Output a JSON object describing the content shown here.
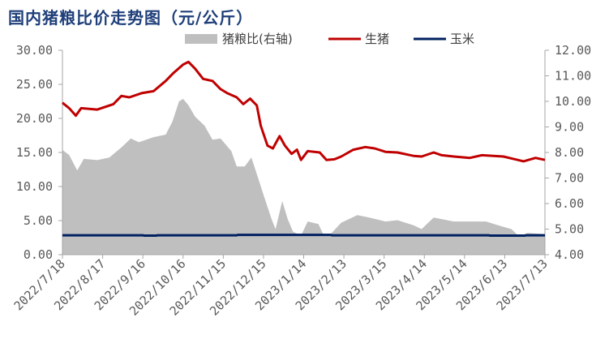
{
  "title": "国内猪粮比价走势图（元/公斤）",
  "chart_data": {
    "type": "line",
    "title": "国内猪粮比价走势图（元/公斤）",
    "start_date": "2022/7/18",
    "x_unit": "days since 2022/7/18",
    "x_range": [
      0,
      360
    ],
    "x_tick_labels": [
      "2022/7/18",
      "2022/8/17",
      "2022/9/16",
      "2022/10/16",
      "2022/11/15",
      "2022/12/15",
      "2023/1/14",
      "2023/2/13",
      "2023/3/15",
      "2023/4/14",
      "2023/5/14",
      "2023/6/13",
      "2023/7/13"
    ],
    "y_left": {
      "range": [
        0,
        30
      ],
      "ticks": [
        "0.00",
        "5.00",
        "10.00",
        "15.00",
        "20.00",
        "25.00",
        "30.00"
      ]
    },
    "y_right": {
      "range": [
        4,
        12
      ],
      "ticks": [
        "4.00",
        "5.00",
        "6.00",
        "7.00",
        "8.00",
        "9.00",
        "10.00",
        "11.00",
        "12.00"
      ]
    },
    "legend_position": "top-center",
    "series": [
      {
        "name": "猪粮比(右轴)",
        "type": "area",
        "axis": "right",
        "color": "#BFBFBF",
        "points": [
          [
            0,
            8.1
          ],
          [
            5,
            7.9
          ],
          [
            11,
            7.3
          ],
          [
            16,
            7.75
          ],
          [
            26,
            7.7
          ],
          [
            35,
            7.8
          ],
          [
            44,
            8.2
          ],
          [
            51,
            8.55
          ],
          [
            57,
            8.4
          ],
          [
            68,
            8.6
          ],
          [
            77,
            8.7
          ],
          [
            82,
            9.2
          ],
          [
            87,
            10.0
          ],
          [
            90,
            10.1
          ],
          [
            94,
            9.85
          ],
          [
            99,
            9.4
          ],
          [
            106,
            9.05
          ],
          [
            112,
            8.5
          ],
          [
            118,
            8.55
          ],
          [
            126,
            8.05
          ],
          [
            130,
            7.45
          ],
          [
            136,
            7.45
          ],
          [
            141,
            7.8
          ],
          [
            146,
            7.0
          ],
          [
            150,
            6.35
          ],
          [
            156,
            5.4
          ],
          [
            159,
            5.0
          ],
          [
            164,
            6.1
          ],
          [
            168,
            5.4
          ],
          [
            172,
            4.9
          ],
          [
            178,
            4.75
          ],
          [
            183,
            5.3
          ],
          [
            191,
            5.2
          ],
          [
            195,
            4.75
          ],
          [
            200,
            4.8
          ],
          [
            208,
            5.25
          ],
          [
            220,
            5.55
          ],
          [
            229,
            5.45
          ],
          [
            241,
            5.3
          ],
          [
            250,
            5.35
          ],
          [
            262,
            5.15
          ],
          [
            268,
            5.0
          ],
          [
            277,
            5.45
          ],
          [
            292,
            5.3
          ],
          [
            316,
            5.3
          ],
          [
            325,
            5.15
          ],
          [
            335,
            5.0
          ],
          [
            341,
            4.7
          ],
          [
            347,
            4.85
          ],
          [
            360,
            4.8
          ]
        ]
      },
      {
        "name": "生猪",
        "type": "line",
        "axis": "left",
        "color": "#C00000",
        "points": [
          [
            0,
            22.3
          ],
          [
            5,
            21.5
          ],
          [
            10,
            20.4
          ],
          [
            14,
            21.5
          ],
          [
            26,
            21.3
          ],
          [
            38,
            22.1
          ],
          [
            44,
            23.3
          ],
          [
            50,
            23.1
          ],
          [
            59,
            23.7
          ],
          [
            68,
            24.0
          ],
          [
            77,
            25.5
          ],
          [
            83,
            26.7
          ],
          [
            90,
            27.9
          ],
          [
            94,
            28.3
          ],
          [
            99,
            27.3
          ],
          [
            105,
            25.8
          ],
          [
            112,
            25.5
          ],
          [
            118,
            24.3
          ],
          [
            123,
            23.7
          ],
          [
            130,
            23.1
          ],
          [
            135,
            22.1
          ],
          [
            140,
            22.9
          ],
          [
            145,
            21.9
          ],
          [
            148,
            18.9
          ],
          [
            153,
            16.0
          ],
          [
            157,
            15.6
          ],
          [
            162,
            17.4
          ],
          [
            166,
            16.0
          ],
          [
            171,
            14.8
          ],
          [
            175,
            15.4
          ],
          [
            178,
            13.9
          ],
          [
            183,
            15.2
          ],
          [
            192,
            15.0
          ],
          [
            197,
            13.9
          ],
          [
            203,
            14.0
          ],
          [
            208,
            14.4
          ],
          [
            217,
            15.4
          ],
          [
            226,
            15.8
          ],
          [
            233,
            15.6
          ],
          [
            241,
            15.1
          ],
          [
            250,
            15.0
          ],
          [
            262,
            14.5
          ],
          [
            268,
            14.4
          ],
          [
            277,
            15.0
          ],
          [
            283,
            14.6
          ],
          [
            292,
            14.4
          ],
          [
            304,
            14.2
          ],
          [
            313,
            14.6
          ],
          [
            329,
            14.4
          ],
          [
            344,
            13.7
          ],
          [
            353,
            14.2
          ],
          [
            360,
            13.9
          ]
        ]
      },
      {
        "name": "玉米",
        "type": "line",
        "axis": "left",
        "color": "#002060",
        "points": [
          [
            0,
            2.85
          ],
          [
            60,
            2.85
          ],
          [
            61,
            2.8
          ],
          [
            70,
            2.8
          ],
          [
            71,
            2.85
          ],
          [
            130,
            2.85
          ],
          [
            131,
            2.9
          ],
          [
            200,
            2.9
          ],
          [
            201,
            2.85
          ],
          [
            318,
            2.85
          ],
          [
            319,
            2.8
          ],
          [
            345,
            2.8
          ],
          [
            346,
            2.85
          ],
          [
            360,
            2.85
          ]
        ]
      }
    ]
  }
}
